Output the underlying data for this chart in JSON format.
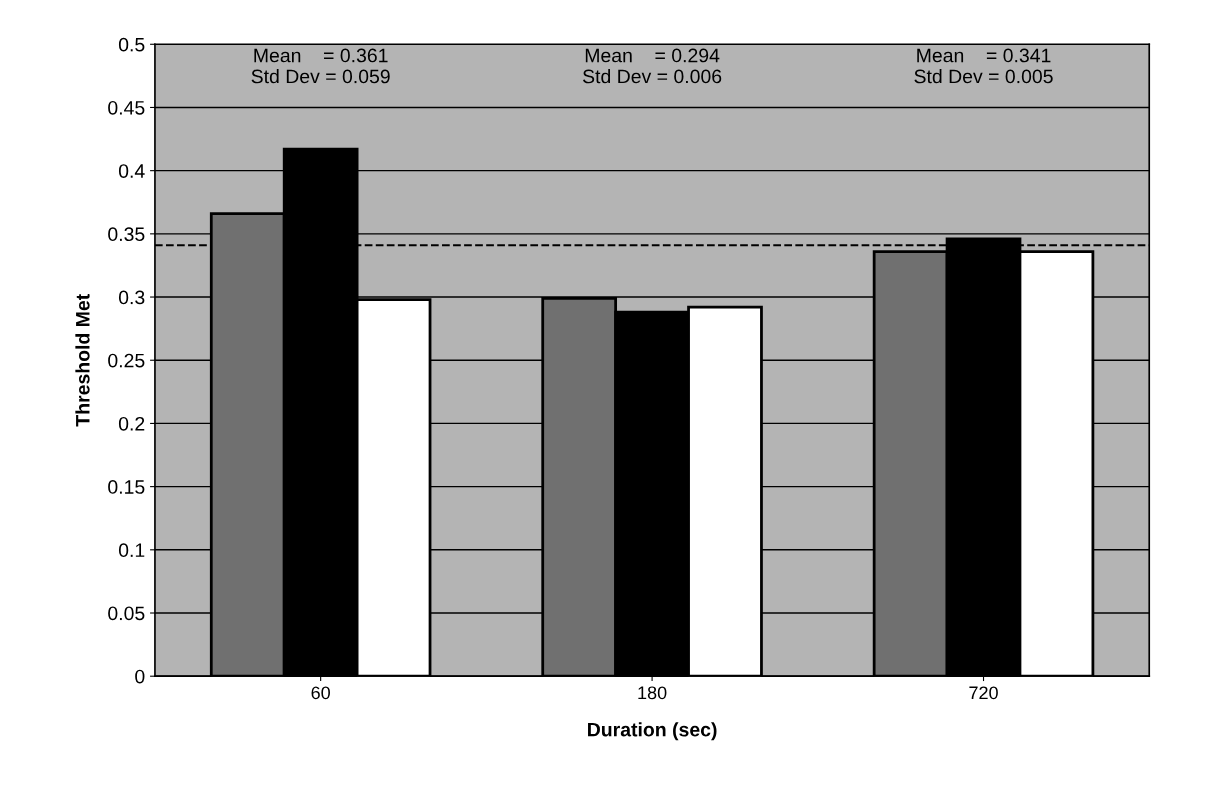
{
  "chart_data": {
    "type": "bar",
    "xlabel": "Duration (sec)",
    "ylabel": "Threshold Met",
    "categories": [
      "60",
      "180",
      "720"
    ],
    "series": [
      {
        "color": "#707070",
        "values": [
          0.366,
          0.299,
          0.336
        ]
      },
      {
        "color": "#000000",
        "values": [
          0.417,
          0.288,
          0.346
        ]
      },
      {
        "color": "#ffffff",
        "values": [
          0.298,
          0.292,
          0.336
        ]
      }
    ],
    "ylim": [
      0,
      0.5
    ],
    "yticks": [
      0,
      0.05,
      0.1,
      0.15,
      0.2,
      0.25,
      0.3,
      0.35,
      0.4,
      0.45,
      0.5
    ],
    "grid": "y",
    "legend": false,
    "ref_lines": [
      {
        "axis": "y",
        "value": 0.341,
        "line_style": "dashed",
        "color": "#000000"
      }
    ],
    "annotations": [
      "Mean    = 0.361\nStd Dev = 0.059",
      "Mean    = 0.294\nStd Dev = 0.006",
      "Mean    = 0.341\nStd Dev = 0.005"
    ]
  }
}
